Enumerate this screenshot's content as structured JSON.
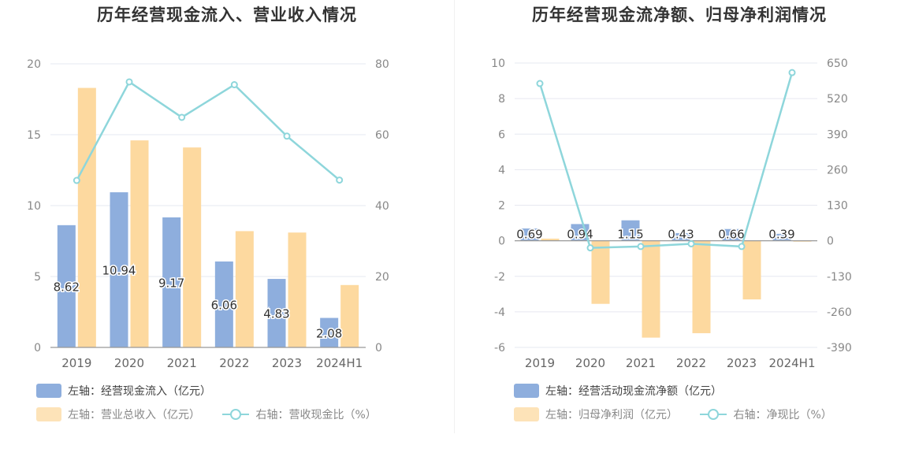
{
  "chart_data": [
    {
      "type": "bar",
      "title": "历年经营现金流入、营业收入情况",
      "categories": [
        "2019",
        "2020",
        "2021",
        "2022",
        "2023",
        "2024H1"
      ],
      "left_axis": {
        "ticks": [
          "0",
          "5",
          "10",
          "15",
          "20"
        ],
        "ylim": [
          0,
          20
        ]
      },
      "right_axis": {
        "ticks": [
          "0",
          "20",
          "40",
          "60",
          "80"
        ],
        "ylim": [
          0,
          80
        ]
      },
      "grid": true,
      "series": [
        {
          "name": "左轴：经营现金流入（亿元）",
          "type": "bar",
          "axis": "left",
          "color": "#8eaedd",
          "values": [
            8.62,
            10.94,
            9.17,
            6.06,
            4.83,
            2.08
          ],
          "labels": [
            "8.62",
            "10.94",
            "9.17",
            "6.06",
            "4.83",
            "2.08"
          ]
        },
        {
          "name": "左轴：营业总收入（亿元）",
          "type": "bar",
          "axis": "left",
          "color": "#fdd99f",
          "values": [
            18.3,
            14.6,
            14.1,
            8.2,
            8.1,
            4.4
          ]
        },
        {
          "name": "右轴：营收现金比（%）",
          "type": "line",
          "axis": "right",
          "color": "#8ed6db",
          "values": [
            47.1,
            74.9,
            64.9,
            74.1,
            59.6,
            47.2
          ]
        }
      ],
      "legend_position": "bottom-left"
    },
    {
      "type": "bar",
      "title": "历年经营现金流净额、归母净利润情况",
      "categories": [
        "2019",
        "2020",
        "2021",
        "2022",
        "2023",
        "2024H1"
      ],
      "left_axis": {
        "ticks": [
          "-6",
          "-4",
          "-2",
          "0",
          "2",
          "4",
          "6",
          "8",
          "10"
        ],
        "ylim": [
          -6,
          10
        ]
      },
      "right_axis": {
        "ticks": [
          "-390",
          "-260",
          "-130",
          "0",
          "130",
          "260",
          "390",
          "520",
          "650"
        ],
        "ylim": [
          -390,
          650
        ]
      },
      "grid": true,
      "series": [
        {
          "name": "左轴：经营活动现金流净额（亿元）",
          "type": "bar",
          "axis": "left",
          "color": "#8eaedd",
          "values": [
            0.69,
            0.94,
            1.15,
            0.43,
            0.66,
            0.39
          ],
          "labels": [
            "0.69",
            "0.94",
            "1.15",
            "0.43",
            "0.66",
            "0.39"
          ]
        },
        {
          "name": "左轴：归母净利润（亿元）",
          "type": "bar",
          "axis": "left",
          "color": "#fdd99f",
          "values": [
            0.12,
            -3.55,
            -5.45,
            -5.2,
            -3.3,
            -0.05
          ]
        },
        {
          "name": "右轴：净现比（%）",
          "type": "line",
          "axis": "right",
          "color": "#8ed6db",
          "values": [
            575,
            -26,
            -21,
            -11,
            -21,
            615
          ]
        }
      ],
      "legend_position": "bottom-left"
    }
  ]
}
